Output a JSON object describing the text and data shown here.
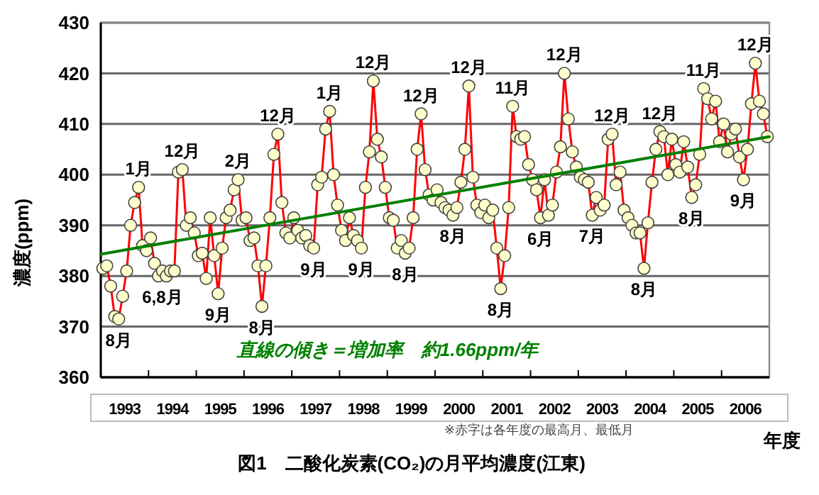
{
  "chart_data": {
    "type": "line",
    "title": "図1　二酸化炭素(CO₂)の月平均濃度(江東)",
    "xlabel": "年度",
    "ylabel": "濃度(ppm)",
    "xlim": [
      1993,
      2007
    ],
    "xticks": [
      {
        "value": 1993.5,
        "label": "1993"
      },
      {
        "value": 1994.5,
        "label": "1994"
      },
      {
        "value": 1995.5,
        "label": "1995"
      },
      {
        "value": 1996.5,
        "label": "1996"
      },
      {
        "value": 1997.5,
        "label": "1997"
      },
      {
        "value": 1998.5,
        "label": "1998"
      },
      {
        "value": 1999.5,
        "label": "1999"
      },
      {
        "value": 2000.5,
        "label": "2000"
      },
      {
        "value": 2001.5,
        "label": "2001"
      },
      {
        "value": 2002.5,
        "label": "2002"
      },
      {
        "value": 2003.5,
        "label": "2003"
      },
      {
        "value": 2004.5,
        "label": "2004"
      },
      {
        "value": 2005.5,
        "label": "2005"
      },
      {
        "value": 2006.5,
        "label": "2006"
      }
    ],
    "ylim": [
      360,
      430
    ],
    "yticks": [
      360,
      370,
      380,
      390,
      400,
      410,
      420,
      430
    ],
    "grid": "y",
    "marker": "circle",
    "line_style": "solid",
    "series": [
      {
        "color": "#ff0000",
        "x": [
          1993.042,
          1993.125,
          1993.208,
          1993.292,
          1993.375,
          1993.458,
          1993.542,
          1993.625,
          1993.708,
          1993.792,
          1993.875,
          1993.958,
          1994.042,
          1994.125,
          1994.208,
          1994.292,
          1994.375,
          1994.458,
          1994.542,
          1994.625,
          1994.708,
          1994.792,
          1994.875,
          1994.958,
          1995.042,
          1995.125,
          1995.208,
          1995.292,
          1995.375,
          1995.458,
          1995.542,
          1995.625,
          1995.708,
          1995.792,
          1995.875,
          1995.958,
          1996.042,
          1996.125,
          1996.208,
          1996.292,
          1996.375,
          1996.458,
          1996.542,
          1996.625,
          1996.708,
          1996.792,
          1996.875,
          1996.958,
          1997.042,
          1997.125,
          1997.208,
          1997.292,
          1997.375,
          1997.458,
          1997.542,
          1997.625,
          1997.708,
          1997.792,
          1997.875,
          1997.958,
          1998.042,
          1998.125,
          1998.208,
          1998.292,
          1998.375,
          1998.458,
          1998.542,
          1998.625,
          1998.708,
          1998.792,
          1998.875,
          1998.958,
          1999.042,
          1999.125,
          1999.208,
          1999.292,
          1999.375,
          1999.458,
          1999.542,
          1999.625,
          1999.708,
          1999.792,
          1999.875,
          1999.958,
          2000.042,
          2000.125,
          2000.208,
          2000.292,
          2000.375,
          2000.458,
          2000.542,
          2000.625,
          2000.708,
          2000.792,
          2000.875,
          2000.958,
          2001.042,
          2001.125,
          2001.208,
          2001.292,
          2001.375,
          2001.458,
          2001.542,
          2001.625,
          2001.708,
          2001.792,
          2001.875,
          2001.958,
          2002.042,
          2002.125,
          2002.208,
          2002.292,
          2002.375,
          2002.458,
          2002.542,
          2002.625,
          2002.708,
          2002.792,
          2002.875,
          2002.958,
          2003.042,
          2003.125,
          2003.208,
          2003.292,
          2003.375,
          2003.458,
          2003.542,
          2003.625,
          2003.708,
          2003.792,
          2003.875,
          2003.958,
          2004.042,
          2004.125,
          2004.208,
          2004.292,
          2004.375,
          2004.458,
          2004.542,
          2004.625,
          2004.708,
          2004.792,
          2004.875,
          2004.958,
          2005.042,
          2005.125,
          2005.208,
          2005.292,
          2005.375,
          2005.458,
          2005.542,
          2005.625,
          2005.708,
          2005.792,
          2005.875,
          2005.958,
          2006.042,
          2006.125,
          2006.208,
          2006.292,
          2006.375,
          2006.458,
          2006.542,
          2006.625,
          2006.708,
          2006.792,
          2006.875,
          2006.958
        ],
        "values": [
          381.5,
          382,
          378,
          372,
          371.5,
          376,
          381,
          390,
          394.5,
          397.5,
          386,
          385,
          387.5,
          382.5,
          380,
          381,
          380,
          381,
          381,
          400.5,
          401,
          390,
          391.5,
          388.5,
          384,
          384.5,
          379.5,
          391.5,
          384,
          376.5,
          385.5,
          391.5,
          393,
          397,
          399,
          391,
          391.5,
          387,
          387.5,
          382,
          374,
          382,
          391.5,
          404,
          408,
          394.5,
          388.5,
          387.5,
          391.5,
          389,
          387.5,
          388,
          386,
          385.5,
          398,
          399.5,
          409,
          412.5,
          400,
          394,
          389,
          387,
          391.5,
          388,
          387,
          385.5,
          397.5,
          404.5,
          418.5,
          407,
          403.5,
          397.5,
          391.5,
          391,
          385.5,
          387,
          384.5,
          385.5,
          391.5,
          405,
          412,
          401,
          396,
          395,
          397,
          394.5,
          393.5,
          393,
          392,
          393.5,
          398.5,
          405,
          417.5,
          399.5,
          394,
          392.5,
          394,
          391.5,
          393,
          385.5,
          377.5,
          384,
          393.5,
          413.5,
          407.5,
          407,
          407.5,
          402,
          399,
          397,
          391.5,
          399,
          392,
          394,
          400.5,
          405.5,
          420,
          411,
          404.5,
          401.5,
          399.5,
          399,
          398.5,
          392,
          395.5,
          393,
          394,
          407,
          408,
          398,
          400.5,
          393,
          391.5,
          390,
          388.5,
          388.5,
          381.5,
          390.5,
          398.5,
          405,
          408.5,
          407.5,
          400,
          407,
          402,
          400.5,
          406.5,
          401.5,
          395.5,
          398,
          404,
          417,
          415,
          411,
          414.5,
          406.5,
          410,
          404.5,
          408,
          409,
          403.5,
          399,
          405,
          414,
          422,
          414.5,
          412,
          407.5
        ]
      },
      {
        "name": "直線の傾き＝増加率　約1.66ppm/年",
        "color": "#008000",
        "marker": "none",
        "x": [
          1993,
          2007
        ],
        "values": [
          384.3,
          407.5
        ]
      }
    ],
    "annotations": [
      {
        "text": "8月",
        "x": 1993.375,
        "y": 371.5
      },
      {
        "text": "1月",
        "x": 1993.792,
        "y": 397.5
      },
      {
        "text": "6,8月",
        "x": 1994.292,
        "y": 380
      },
      {
        "text": "12月",
        "x": 1994.708,
        "y": 401
      },
      {
        "text": "9月",
        "x": 1995.458,
        "y": 376.5
      },
      {
        "text": "2月",
        "x": 1995.875,
        "y": 399
      },
      {
        "text": "8月",
        "x": 1996.375,
        "y": 374
      },
      {
        "text": "12月",
        "x": 1996.708,
        "y": 408
      },
      {
        "text": "9月",
        "x": 1997.458,
        "y": 385.5
      },
      {
        "text": "1月",
        "x": 1997.792,
        "y": 412.5
      },
      {
        "text": "9月",
        "x": 1998.458,
        "y": 385.5
      },
      {
        "text": "12月",
        "x": 1998.708,
        "y": 418.5
      },
      {
        "text": "8月",
        "x": 1999.375,
        "y": 384.5
      },
      {
        "text": "12月",
        "x": 1999.708,
        "y": 412
      },
      {
        "text": "8月",
        "x": 2000.375,
        "y": 392
      },
      {
        "text": "12月",
        "x": 2000.708,
        "y": 417.5
      },
      {
        "text": "8月",
        "x": 2001.375,
        "y": 377.5
      },
      {
        "text": "11月",
        "x": 2001.625,
        "y": 413.5
      },
      {
        "text": "6月",
        "x": 2002.208,
        "y": 391.5
      },
      {
        "text": "12月",
        "x": 2002.708,
        "y": 420
      },
      {
        "text": "7月",
        "x": 2003.292,
        "y": 392
      },
      {
        "text": "12月",
        "x": 2003.708,
        "y": 408
      },
      {
        "text": "8月",
        "x": 2004.375,
        "y": 381.5
      },
      {
        "text": "12月",
        "x": 2004.708,
        "y": 408.5
      },
      {
        "text": "8月",
        "x": 2005.375,
        "y": 395.5
      },
      {
        "text": "11月",
        "x": 2005.625,
        "y": 417
      },
      {
        "text": "9月",
        "x": 2006.458,
        "y": 399
      },
      {
        "text": "12月",
        "x": 2006.708,
        "y": 422
      },
      "※赤字は各年度の最高月、最低月"
    ]
  }
}
